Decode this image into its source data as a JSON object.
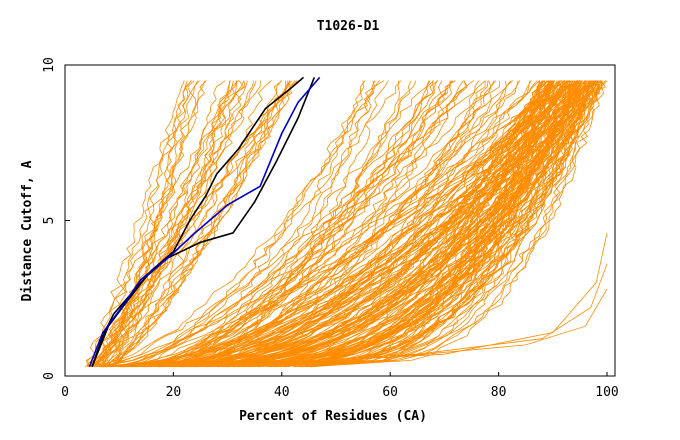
{
  "chart_data": {
    "type": "line",
    "title": "T1026-D1",
    "xlabel": "Percent of Residues (CA)",
    "ylabel": "Distance Cutoff, A",
    "xlim": [
      0,
      100
    ],
    "ylim": [
      0,
      10
    ],
    "x_ticks": [
      "0",
      "20",
      "40",
      "60",
      "80",
      "100"
    ],
    "y_ticks": [
      "0",
      "5",
      "10"
    ],
    "grid": false,
    "legend": "none",
    "colors": {
      "background_models": "#ff8c00",
      "highlight_a": "#000000",
      "highlight_b": "#000000",
      "highlight_c": "#0000cd",
      "frame": "#000000"
    },
    "background_model_count": 220,
    "highlighted_series": [
      {
        "color_key": "highlight_a",
        "points": [
          [
            5,
            0.3
          ],
          [
            7,
            1.3
          ],
          [
            9,
            2.0
          ],
          [
            12,
            2.6
          ],
          [
            16,
            3.4
          ],
          [
            20,
            4.0
          ],
          [
            23,
            5.0
          ],
          [
            26,
            5.8
          ],
          [
            28,
            6.5
          ],
          [
            32,
            7.3
          ],
          [
            37,
            8.6
          ],
          [
            42,
            9.3
          ],
          [
            44,
            9.6
          ]
        ]
      },
      {
        "color_key": "highlight_b",
        "points": [
          [
            5,
            0.3
          ],
          [
            8,
            1.6
          ],
          [
            11,
            2.3
          ],
          [
            15,
            3.2
          ],
          [
            19,
            3.8
          ],
          [
            25,
            4.3
          ],
          [
            31,
            4.6
          ],
          [
            35,
            5.6
          ],
          [
            39,
            6.9
          ],
          [
            43,
            8.3
          ],
          [
            46,
            9.6
          ]
        ]
      },
      {
        "color_key": "highlight_c",
        "points": [
          [
            4.5,
            0.3
          ],
          [
            7,
            1.4
          ],
          [
            10,
            2.1
          ],
          [
            14,
            3.1
          ],
          [
            19,
            3.8
          ],
          [
            24,
            4.6
          ],
          [
            30,
            5.5
          ],
          [
            36,
            6.1
          ],
          [
            40,
            7.8
          ],
          [
            43,
            8.8
          ],
          [
            47,
            9.6
          ]
        ]
      }
    ]
  }
}
